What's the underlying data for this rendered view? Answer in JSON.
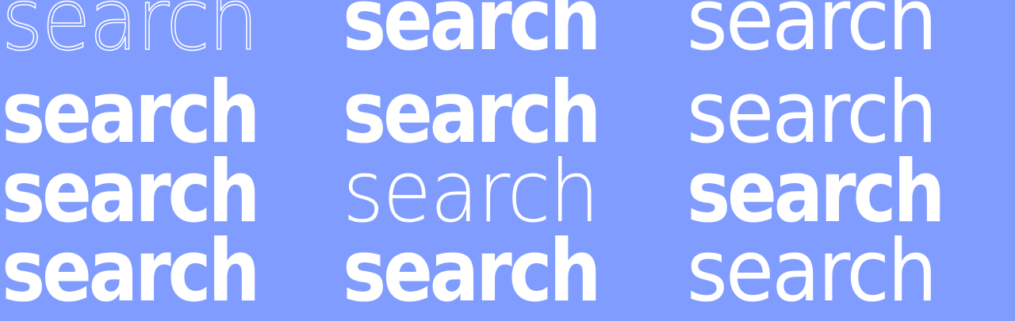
{
  "background_color": "#809cfe",
  "text_color": "#ffffff",
  "rows": [
    {
      "words": [
        {
          "text": "search",
          "weight": "thin"
        },
        {
          "text": "search",
          "weight": "bold"
        },
        {
          "text": "search",
          "weight": "regular"
        }
      ]
    },
    {
      "words": [
        {
          "text": "search",
          "weight": "bold"
        },
        {
          "text": "search",
          "weight": "bold"
        },
        {
          "text": "search",
          "weight": "regular"
        }
      ]
    },
    {
      "words": [
        {
          "text": "search",
          "weight": "bold"
        },
        {
          "text": "search",
          "weight": "thin"
        },
        {
          "text": "search",
          "weight": "bold"
        }
      ]
    },
    {
      "words": [
        {
          "text": "search",
          "weight": "bold"
        },
        {
          "text": "search",
          "weight": "bold"
        },
        {
          "text": "search",
          "weight": "regular"
        }
      ]
    }
  ]
}
